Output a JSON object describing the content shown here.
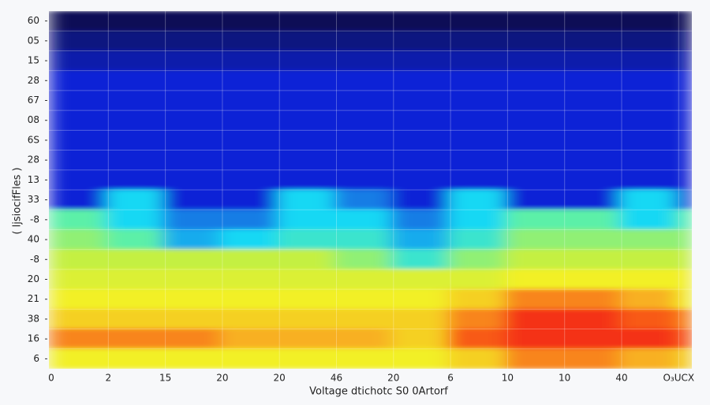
{
  "chart_data": {
    "type": "heatmap",
    "x_label": "Voltage dtichotc S0 0Artorf",
    "y_label": "( ljsiocifFles )",
    "categories": [
      "0",
      "2",
      "15",
      "20",
      "20",
      "46",
      "20",
      "6",
      "10",
      "10",
      "40",
      "O₃UCX"
    ],
    "rows": [
      "60",
      "05",
      "15",
      "28",
      "67",
      "08",
      "6S",
      "28",
      "13",
      "33",
      "-8",
      "40",
      "-8",
      "20",
      "21",
      "38",
      "16",
      "6"
    ],
    "zlim": [
      0,
      10
    ],
    "colorscale": [
      [
        0,
        "#0b0b2e"
      ],
      [
        1,
        "#0a1380"
      ],
      [
        2,
        "#0c22d6"
      ],
      [
        4,
        "#18d8f4"
      ],
      [
        5,
        "#5cf0a8"
      ],
      [
        6,
        "#c4f042"
      ],
      [
        7,
        "#f2f026"
      ],
      [
        8,
        "#f8b020"
      ],
      [
        9,
        "#f85a18"
      ],
      [
        10,
        "#f00c0c"
      ]
    ],
    "grid": true,
    "z": [
      [
        0.5,
        0.5,
        0.5,
        0.5,
        0.5,
        0.5,
        0.5,
        0.5,
        0.5,
        0.5,
        0.5,
        0.5
      ],
      [
        1,
        1,
        1,
        1,
        1,
        1,
        1,
        1,
        1,
        1,
        1,
        1
      ],
      [
        1.5,
        1.5,
        1.5,
        1.5,
        1.5,
        1.5,
        1.5,
        1.5,
        1.5,
        1.5,
        1.5,
        1.5
      ],
      [
        2,
        2,
        2,
        2,
        2,
        2,
        2,
        2,
        2,
        2,
        2,
        2
      ],
      [
        2,
        2,
        2,
        2,
        2,
        2,
        2,
        2,
        2,
        2,
        2,
        2
      ],
      [
        2,
        2,
        2,
        2,
        2,
        2,
        2,
        2,
        2,
        2,
        2,
        2
      ],
      [
        2,
        2,
        2,
        2,
        2,
        2,
        2,
        2,
        2,
        2,
        2,
        2
      ],
      [
        2,
        2,
        2,
        2,
        2,
        2,
        2,
        2,
        2,
        2,
        2,
        2
      ],
      [
        2,
        2,
        2,
        2,
        2,
        2,
        2,
        2,
        2,
        2,
        2,
        2
      ],
      [
        2,
        4,
        2,
        2,
        4,
        3,
        2,
        4,
        2,
        2,
        4,
        2
      ],
      [
        5,
        4,
        3,
        3,
        4,
        4,
        3,
        4,
        5,
        5,
        4,
        5
      ],
      [
        5.5,
        5,
        3.5,
        4,
        4.5,
        4.5,
        3.5,
        4.5,
        5.5,
        5.5,
        5.5,
        5.5
      ],
      [
        6,
        6,
        6,
        6,
        6,
        5.5,
        4.5,
        5.5,
        6,
        6,
        6,
        6
      ],
      [
        6.5,
        6.5,
        6.5,
        6.5,
        6.5,
        6.5,
        6.5,
        6.5,
        7,
        7,
        7,
        7
      ],
      [
        7,
        7,
        7,
        7,
        7,
        7,
        7,
        7.5,
        8.5,
        8.5,
        8,
        7
      ],
      [
        7.5,
        7.5,
        7.5,
        7.5,
        7.5,
        7.5,
        7.5,
        8.5,
        9.5,
        9.5,
        9,
        8.5
      ],
      [
        8.5,
        8.5,
        8.5,
        8,
        8,
        8,
        7.5,
        9,
        9.5,
        9.5,
        9.5,
        9
      ],
      [
        7,
        7,
        7,
        7,
        7,
        7,
        7,
        7.5,
        8.5,
        8.5,
        8,
        7.5
      ]
    ]
  }
}
